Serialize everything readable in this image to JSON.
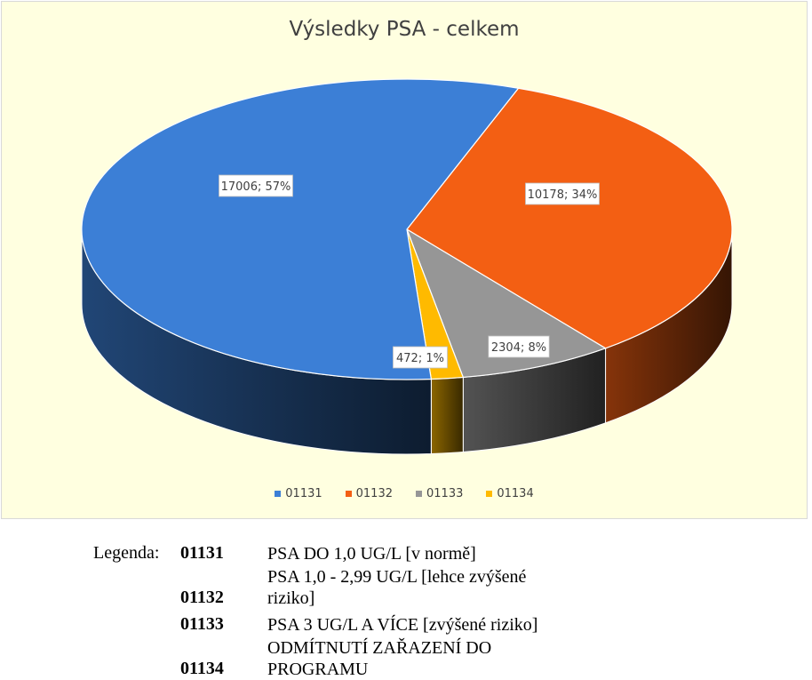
{
  "chart_data": {
    "type": "pie",
    "title": "Výsledky PSA - celkem",
    "categories": [
      "01131",
      "01132",
      "01133",
      "01134"
    ],
    "values": [
      17006,
      10178,
      2304,
      472
    ],
    "percent_labels": [
      "57%",
      "34%",
      "8%",
      "1%"
    ],
    "data_labels": [
      "17006; 57%",
      "10178; 34%",
      "2304; 8%",
      "472; 1%"
    ],
    "colors": [
      "#3c7fd6",
      "#f35f13",
      "#969696",
      "#ffba00"
    ],
    "legend_position": "bottom",
    "style": "3d"
  },
  "legend_note": {
    "heading": "Legenda:",
    "rows": [
      {
        "code": "01131",
        "desc": "PSA DO 1,0 UG/L [v normě]"
      },
      {
        "code": "01132",
        "desc": "PSA 1,0 - 2,99 UG/L [lehce zvýšené riziko]"
      },
      {
        "code": "01133",
        "desc": "PSA 3 UG/L A VÍCE [zvýšené riziko]"
      },
      {
        "code": "01134",
        "desc": "ODMÍTNUTÍ ZAŘAZENÍ DO PROGRAMU"
      }
    ]
  }
}
